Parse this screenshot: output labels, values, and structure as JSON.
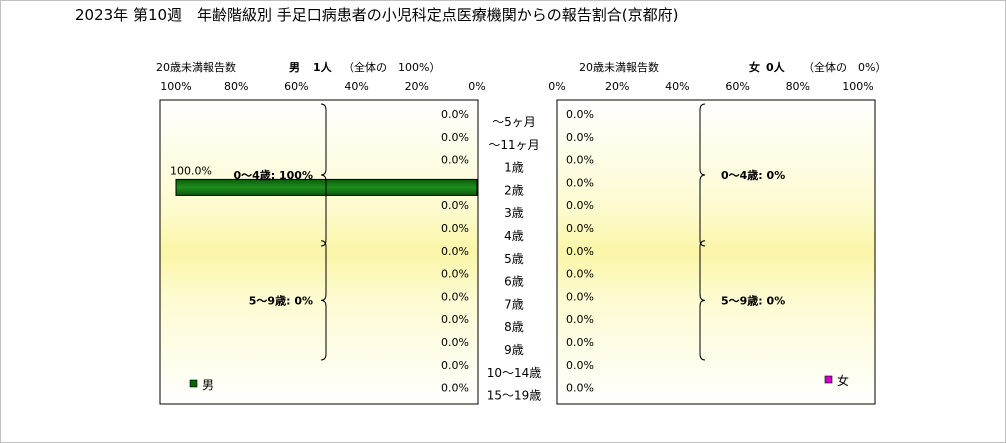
{
  "title": "2023年 第10週　年齢階級別 手足口病患者の小児科定点医療機関からの報告割合(京都府)",
  "male_header": {
    "prefix": "20歳未満報告数",
    "sex": "男",
    "count": "1人",
    "share": "（全体の　100%）"
  },
  "female_header": {
    "prefix": "20歳未満報告数",
    "sex": "女",
    "count": "0人",
    "share": "（全体の　0%）"
  },
  "chart_data": {
    "type": "bar",
    "orientation": "horizontal-population-pyramid",
    "categories": [
      "～5ヶ月",
      "～11ヶ月",
      "1歳",
      "2歳",
      "3歳",
      "4歳",
      "5歳",
      "6歳",
      "7歳",
      "8歳",
      "9歳",
      "10～14歳",
      "15～19歳"
    ],
    "series": [
      {
        "name": "男",
        "values": [
          0,
          0,
          0,
          100,
          0,
          0,
          0,
          0,
          0,
          0,
          0,
          0,
          0
        ],
        "labels": [
          "0.0%",
          "0.0%",
          "0.0%",
          "100.0%",
          "0.0%",
          "0.0%",
          "0.0%",
          "0.0%",
          "0.0%",
          "0.0%",
          "0.0%",
          "0.0%",
          "0.0%"
        ],
        "color": "#006600"
      },
      {
        "name": "女",
        "values": [
          0,
          0,
          0,
          0,
          0,
          0,
          0,
          0,
          0,
          0,
          0,
          0,
          0
        ],
        "labels": [
          "0.0%",
          "0.0%",
          "0.0%",
          "0.0%",
          "0.0%",
          "0.0%",
          "0.0%",
          "0.0%",
          "0.0%",
          "0.0%",
          "0.0%",
          "0.0%",
          "0.0%"
        ],
        "color": "#cc00cc"
      }
    ],
    "male_axis_ticks": [
      "100%",
      "80%",
      "60%",
      "40%",
      "20%",
      "0%"
    ],
    "female_axis_ticks": [
      "0%",
      "20%",
      "40%",
      "60%",
      "80%",
      "100%"
    ],
    "xlim": [
      0,
      100
    ],
    "group_annotations": {
      "male": [
        {
          "text": "0～4歳: 100%",
          "from": "～5ヶ月",
          "to": "4歳"
        },
        {
          "text": "5～9歳: 0%",
          "from": "5歳",
          "to": "9歳"
        }
      ],
      "female": [
        {
          "text": "0～4歳: 0%",
          "from": "～5ヶ月",
          "to": "4歳"
        },
        {
          "text": "5～9歳: 0%",
          "from": "5歳",
          "to": "9歳"
        }
      ]
    },
    "legend": [
      {
        "name": "男",
        "color": "#006600",
        "placement": "bottom-left"
      },
      {
        "name": "女",
        "color": "#cc00cc",
        "placement": "bottom-right"
      }
    ],
    "plot_background": "gradient white-to-yellow"
  }
}
